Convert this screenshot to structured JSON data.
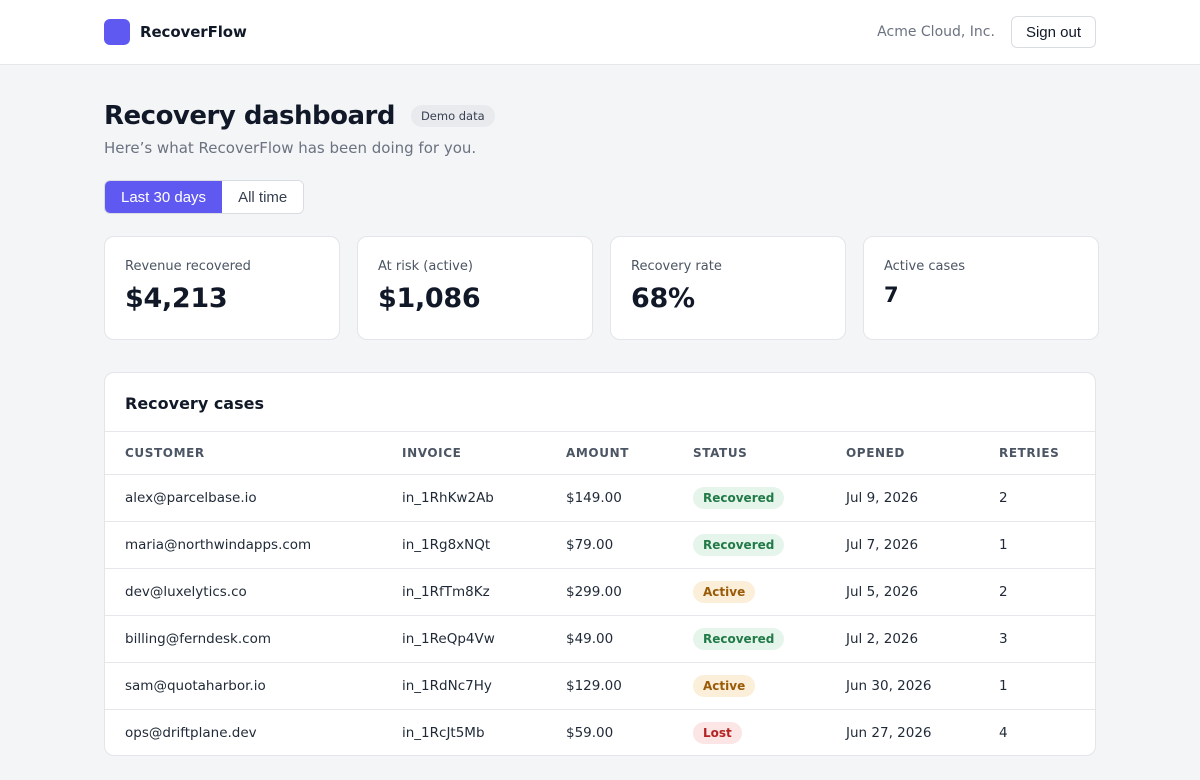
{
  "topbar": {
    "brand": "RecoverFlow",
    "org_name": "Acme Cloud, Inc.",
    "sign_out_label": "Sign out"
  },
  "header": {
    "title": "Recovery dashboard",
    "badge": "Demo data",
    "subtitle": "Here’s what RecoverFlow has been doing for you."
  },
  "range": {
    "options": [
      "Last 30 days",
      "All time"
    ],
    "selected": "Last 30 days"
  },
  "stats": [
    {
      "label": "Revenue recovered",
      "value": "$4,213"
    },
    {
      "label": "At risk (active)",
      "value": "$1,086"
    },
    {
      "label": "Recovery rate",
      "value": "68%"
    },
    {
      "label": "Active cases",
      "value": "7"
    }
  ],
  "cases": {
    "title": "Recovery cases",
    "columns": [
      "CUSTOMER",
      "INVOICE",
      "AMOUNT",
      "STATUS",
      "OPENED",
      "RETRIES"
    ],
    "rows": [
      [
        "alex@parcelbase.io",
        "in_1RhKw2Ab",
        "$149.00",
        "Recovered",
        "Jul 9, 2026",
        "2"
      ],
      [
        "maria@northwindapps.com",
        "in_1Rg8xNQt",
        "$79.00",
        "Recovered",
        "Jul 7, 2026",
        "1"
      ],
      [
        "dev@luxelytics.co",
        "in_1RfTm8Kz",
        "$299.00",
        "Active",
        "Jul 5, 2026",
        "2"
      ],
      [
        "billing@ferndesk.com",
        "in_1ReQp4Vw",
        "$49.00",
        "Recovered",
        "Jul 2, 2026",
        "3"
      ],
      [
        "sam@quotaharbor.io",
        "in_1RdNc7Hy",
        "$129.00",
        "Active",
        "Jun 30, 2026",
        "1"
      ],
      [
        "ops@driftplane.dev",
        "in_1RcJt5Mb",
        "$59.00",
        "Lost",
        "Jun 27, 2026",
        "4"
      ]
    ]
  },
  "colors": {
    "accent": "#6059f1",
    "recovered_bg": "#e6f5ec",
    "recovered_text": "#217a47",
    "active_bg": "#fbefd9",
    "active_text": "#9a5b08",
    "lost_bg": "#fbe5e5",
    "lost_text": "#b42323"
  }
}
